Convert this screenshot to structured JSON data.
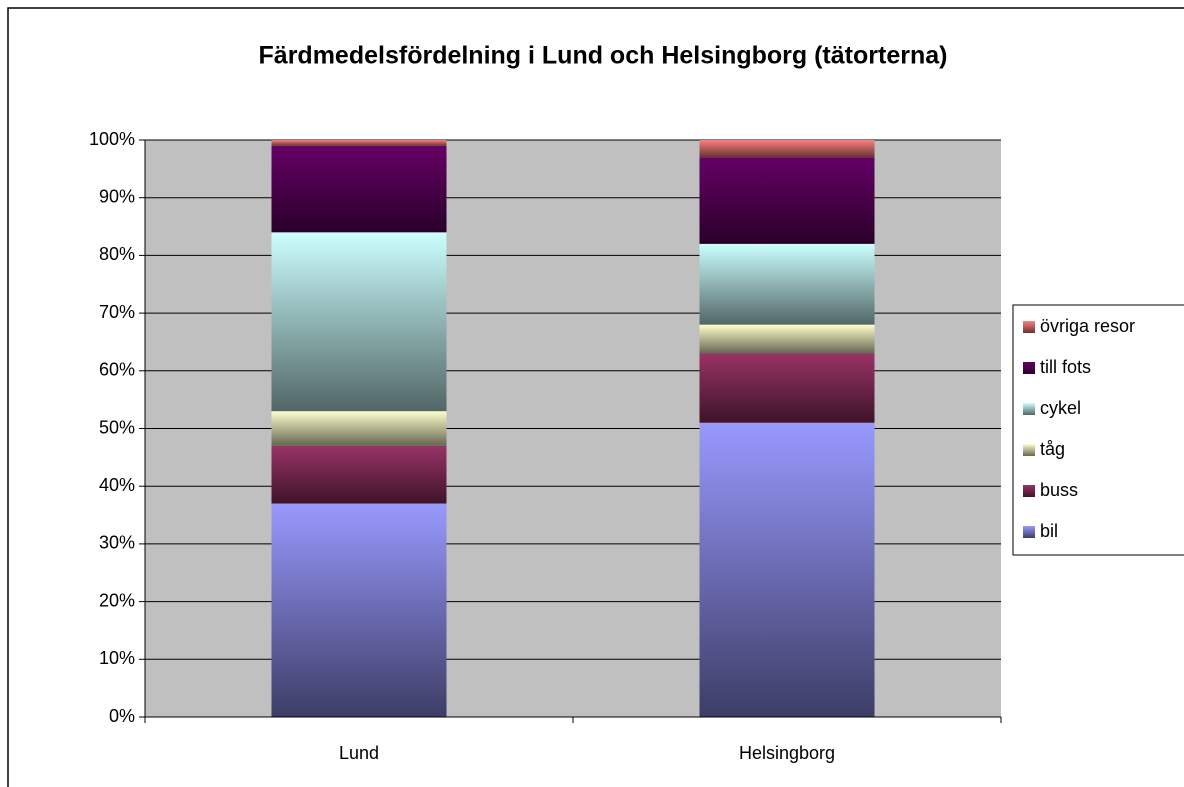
{
  "chart_data": {
    "type": "stacked_bar",
    "title": "Färdmedelsfördelning i Lund och Helsingborg (tätorterna)",
    "categories": [
      "Lund",
      "Helsingborg"
    ],
    "series": [
      {
        "name": "bil",
        "color": "#9999ff",
        "values": [
          37,
          51
        ]
      },
      {
        "name": "buss",
        "color": "#993366",
        "values": [
          10,
          12
        ]
      },
      {
        "name": "tåg",
        "color": "#ffffcc",
        "values": [
          6,
          5
        ]
      },
      {
        "name": "cykel",
        "color": "#ccffff",
        "values": [
          31,
          14
        ]
      },
      {
        "name": "till fots",
        "color": "#660066",
        "values": [
          15,
          15
        ]
      },
      {
        "name": "övriga resor",
        "color": "#ff8080",
        "values": [
          1,
          3
        ]
      }
    ],
    "ylim": [
      0,
      100
    ],
    "yticks": [
      {
        "value": 0,
        "label": "0%"
      },
      {
        "value": 10,
        "label": "10%"
      },
      {
        "value": 20,
        "label": "20%"
      },
      {
        "value": 30,
        "label": "30%"
      },
      {
        "value": 40,
        "label": "40%"
      },
      {
        "value": 50,
        "label": "50%"
      },
      {
        "value": 60,
        "label": "60%"
      },
      {
        "value": 70,
        "label": "70%"
      },
      {
        "value": 80,
        "label": "80%"
      },
      {
        "value": 90,
        "label": "90%"
      },
      {
        "value": 100,
        "label": "100%"
      }
    ],
    "grid": true,
    "legend": "right",
    "plot_background": "#c0c0c0"
  }
}
